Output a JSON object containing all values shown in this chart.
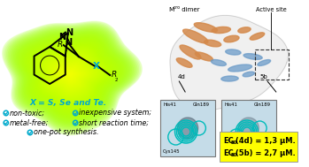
{
  "bg_color": "#ffffff",
  "blob_color_center": "#ffff00",
  "blob_color_edge": "#90ee90",
  "left_panel": {
    "x_label": "X = S, Se and Te.",
    "x_label_color": "#00aacc",
    "checkmark_color": "#00aacc",
    "text_color": "#000000",
    "row1_left": "non-toxic;",
    "row1_right": "inexpensive system;",
    "row2_left": "metal-free;",
    "row2_right": "short reaction time;",
    "row3_center": "one-pot synthesis."
  },
  "right_panel": {
    "mpro_label": "Mpro dimer",
    "active_site_label": "Active site",
    "label_4d": "4d",
    "label_5b": "5b",
    "ec50_bg": "#ffff00",
    "ec50_text1": " (4d) = 1,3 μM.",
    "ec50_text2": " (5b) = 2,7 μM.",
    "ec50_color": "#000000"
  },
  "molecule": {
    "X_color": "#00aacc"
  }
}
